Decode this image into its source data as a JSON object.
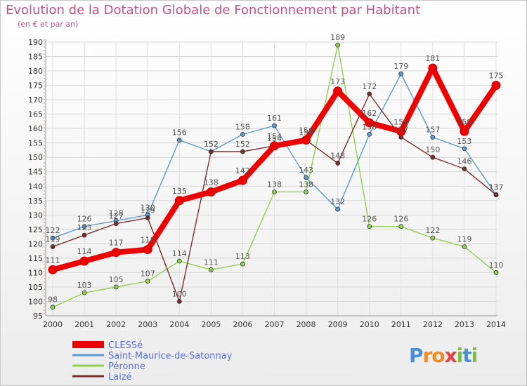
{
  "title": "Evolution de la Dotation Globale de Fonctionnement par Habitant",
  "subtitle": "(en € et par an)",
  "logo": {
    "text": "Proxiti",
    "letters": [
      {
        "ch": "P",
        "color": "#4a90d9"
      },
      {
        "ch": "r",
        "color": "#f08c28"
      },
      {
        "ch": "o",
        "color": "#f08c28"
      },
      {
        "ch": "x",
        "color": "#e84040"
      },
      {
        "ch": "i",
        "color": "#7ac143"
      },
      {
        "ch": "t",
        "color": "#4a90d9"
      },
      {
        "ch": "i",
        "color": "#7ac143"
      }
    ]
  },
  "chart_data": {
    "type": "line",
    "title": "Evolution de la Dotation Globale de Fonctionnement par Habitant",
    "subtitle": "(en € et par an)",
    "xlabel": "",
    "ylabel": "",
    "x": [
      "2000",
      "2001",
      "2002",
      "2003",
      "2004",
      "2005",
      "2006",
      "2007",
      "2008",
      "2009",
      "2010",
      "2011",
      "2012",
      "2013",
      "2014"
    ],
    "ylim": [
      95,
      190
    ],
    "yticks": [
      95,
      100,
      105,
      110,
      115,
      120,
      125,
      130,
      135,
      140,
      145,
      150,
      155,
      160,
      165,
      170,
      175,
      180,
      185,
      190
    ],
    "grid": true,
    "legend_position": "bottom-left",
    "series": [
      {
        "name": "CLESSé",
        "color": "#ee0000",
        "emphasis": true,
        "values": [
          111,
          114,
          117,
          118,
          135,
          138,
          142,
          154,
          156,
          173,
          162,
          159,
          181,
          159,
          175
        ]
      },
      {
        "name": "Saint-Maurice-de-Satonnay",
        "color": "#5b9bd5",
        "values": [
          122,
          126,
          128,
          130,
          156,
          152,
          158,
          161,
          143,
          132,
          158,
          179,
          157,
          153,
          137
        ]
      },
      {
        "name": "Péronne",
        "color": "#92d050",
        "values": [
          98,
          103,
          105,
          107,
          114,
          111,
          113,
          138,
          138,
          189,
          126,
          126,
          122,
          119,
          110
        ]
      },
      {
        "name": "Laizé",
        "color": "#7b2c2c",
        "values": [
          119,
          123,
          127,
          129,
          100,
          152,
          152,
          154,
          156,
          148,
          172,
          157,
          150,
          146,
          137
        ]
      }
    ]
  }
}
